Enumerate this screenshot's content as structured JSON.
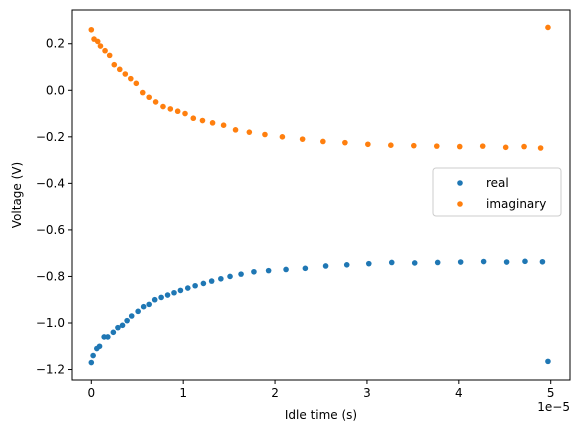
{
  "chart_data": {
    "type": "scatter",
    "title": "",
    "xlabel": "Idle time (s)",
    "ylabel": "Voltage (V)",
    "x_offset_label": "1e−5",
    "xlim": [
      -2.1e-06,
      5.21e-05
    ],
    "ylim": [
      -1.245,
      0.345
    ],
    "x_ticks": [
      {
        "value": 0,
        "label": "0"
      },
      {
        "value": 1e-05,
        "label": "1"
      },
      {
        "value": 2e-05,
        "label": "2"
      },
      {
        "value": 3e-05,
        "label": "3"
      },
      {
        "value": 4e-05,
        "label": "4"
      },
      {
        "value": 5e-05,
        "label": "5"
      }
    ],
    "y_ticks": [
      {
        "value": 0.2,
        "label": "0.2"
      },
      {
        "value": 0.0,
        "label": "0.0"
      },
      {
        "value": -0.2,
        "label": "−0.2"
      },
      {
        "value": -0.4,
        "label": "−0.4"
      },
      {
        "value": -0.6,
        "label": "−0.6"
      },
      {
        "value": -0.8,
        "label": "−0.8"
      },
      {
        "value": -1.0,
        "label": "−1.0"
      },
      {
        "value": -1.2,
        "label": "−1.2"
      }
    ],
    "grid": false,
    "legend_position": "center-right",
    "series": [
      {
        "name": "real",
        "color": "#1f77b4",
        "x": [
          0.0,
          2e-07,
          6e-07,
          9e-07,
          1.4e-06,
          1.8e-06,
          2.4e-06,
          2.9e-06,
          3.4e-06,
          3.9e-06,
          4.4e-06,
          5.1e-06,
          5.7e-06,
          6.3e-06,
          6.9e-06,
          7.6e-06,
          8.3e-06,
          9e-06,
          9.7e-06,
          1.05e-05,
          1.13e-05,
          1.22e-05,
          1.31e-05,
          1.41e-05,
          1.51e-05,
          1.63e-05,
          1.77e-05,
          1.93e-05,
          2.12e-05,
          2.33e-05,
          2.55e-05,
          2.78e-05,
          3.02e-05,
          3.27e-05,
          3.52e-05,
          3.77e-05,
          4.02e-05,
          4.27e-05,
          4.52e-05,
          4.72e-05,
          4.91e-05,
          4.97e-05
        ],
        "y": [
          -1.17,
          -1.14,
          -1.11,
          -1.1,
          -1.06,
          -1.06,
          -1.04,
          -1.02,
          -1.01,
          -0.99,
          -0.97,
          -0.95,
          -0.93,
          -0.92,
          -0.9,
          -0.89,
          -0.88,
          -0.87,
          -0.86,
          -0.85,
          -0.84,
          -0.83,
          -0.82,
          -0.81,
          -0.8,
          -0.79,
          -0.78,
          -0.775,
          -0.77,
          -0.765,
          -0.755,
          -0.75,
          -0.745,
          -0.74,
          -0.742,
          -0.74,
          -0.738,
          -0.736,
          -0.738,
          -0.735,
          -0.737,
          -1.165
        ]
      },
      {
        "name": "imaginary",
        "color": "#ff7f0e",
        "x": [
          0.0,
          3e-07,
          7e-07,
          1e-06,
          1.5e-06,
          2e-06,
          2.5e-06,
          3.1e-06,
          3.7e-06,
          4.3e-06,
          4.9e-06,
          5.6e-06,
          6.3e-06,
          7e-06,
          7.8e-06,
          8.6e-06,
          9.4e-06,
          1.02e-05,
          1.11e-05,
          1.21e-05,
          1.32e-05,
          1.44e-05,
          1.57e-05,
          1.72e-05,
          1.89e-05,
          2.08e-05,
          2.3e-05,
          2.52e-05,
          2.76e-05,
          3.01e-05,
          3.26e-05,
          3.51e-05,
          3.76e-05,
          4.01e-05,
          4.26e-05,
          4.51e-05,
          4.71e-05,
          4.89e-05,
          4.97e-05
        ],
        "y": [
          0.26,
          0.22,
          0.21,
          0.19,
          0.17,
          0.15,
          0.11,
          0.09,
          0.07,
          0.05,
          0.03,
          -0.01,
          -0.03,
          -0.05,
          -0.07,
          -0.08,
          -0.09,
          -0.1,
          -0.12,
          -0.13,
          -0.14,
          -0.15,
          -0.17,
          -0.18,
          -0.19,
          -0.2,
          -0.21,
          -0.22,
          -0.225,
          -0.232,
          -0.236,
          -0.238,
          -0.24,
          -0.242,
          -0.24,
          -0.245,
          -0.242,
          -0.248,
          0.27
        ]
      }
    ]
  }
}
